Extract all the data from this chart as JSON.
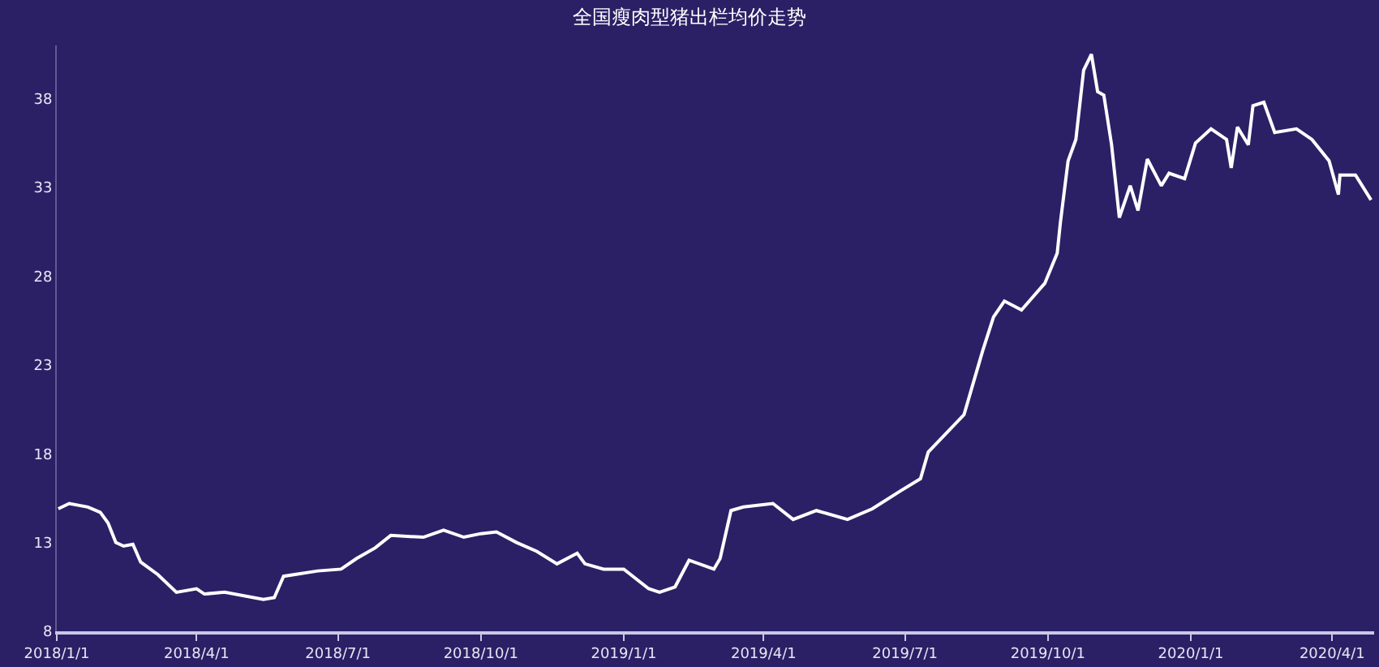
{
  "chart_data": {
    "type": "line",
    "title": "全国瘦肉型猪出栏均价走势",
    "x": [
      "2018-01-02",
      "2018-01-09",
      "2018-01-21",
      "2018-01-29",
      "2018-02-03",
      "2018-02-08",
      "2018-02-13",
      "2018-02-19",
      "2018-02-24",
      "2018-03-07",
      "2018-03-19",
      "2018-04-01",
      "2018-04-06",
      "2018-04-19",
      "2018-05-14",
      "2018-05-21",
      "2018-05-27",
      "2018-06-18",
      "2018-07-03",
      "2018-07-13",
      "2018-07-25",
      "2018-08-04",
      "2018-08-25",
      "2018-09-07",
      "2018-09-20",
      "2018-10-01",
      "2018-10-11",
      "2018-10-24",
      "2018-11-06",
      "2018-11-19",
      "2018-12-02",
      "2018-12-07",
      "2018-12-19",
      "2019-01-01",
      "2019-01-17",
      "2019-01-24",
      "2019-02-03",
      "2019-02-12",
      "2019-02-28",
      "2019-03-04",
      "2019-03-11",
      "2019-03-19",
      "2019-04-07",
      "2019-04-20",
      "2019-05-05",
      "2019-05-25",
      "2019-06-10",
      "2019-06-28",
      "2019-07-11",
      "2019-07-16",
      "2019-08-08",
      "2019-08-15",
      "2019-08-20",
      "2019-08-27",
      "2019-09-03",
      "2019-09-14",
      "2019-09-29",
      "2019-10-07",
      "2019-10-09",
      "2019-10-14",
      "2019-10-19",
      "2019-10-24",
      "2019-10-29",
      "2019-11-02",
      "2019-11-06",
      "2019-11-11",
      "2019-11-16",
      "2019-11-23",
      "2019-11-28",
      "2019-12-04",
      "2019-12-13",
      "2019-12-18",
      "2019-12-28",
      "2020-01-04",
      "2020-01-14",
      "2020-01-24",
      "2020-01-27",
      "2020-01-31",
      "2020-02-07",
      "2020-02-10",
      "2020-02-17",
      "2020-02-24",
      "2020-03-09",
      "2020-03-19",
      "2020-03-30",
      "2020-04-05",
      "2020-04-06",
      "2020-04-16",
      "2020-04-26"
    ],
    "series": [
      {
        "color": "#ffffff",
        "values": [
          14.9,
          15.2,
          15.0,
          14.7,
          14.1,
          13.0,
          12.8,
          12.9,
          11.9,
          11.2,
          10.2,
          10.4,
          10.1,
          10.2,
          9.8,
          9.9,
          11.1,
          11.4,
          11.5,
          12.1,
          12.7,
          13.4,
          13.3,
          13.7,
          13.3,
          13.5,
          13.6,
          13.0,
          12.5,
          11.8,
          12.4,
          11.8,
          11.5,
          11.5,
          10.4,
          10.2,
          10.5,
          12.0,
          11.5,
          12.1,
          14.8,
          15.0,
          15.2,
          14.3,
          14.8,
          14.3,
          14.9,
          15.9,
          16.6,
          18.1,
          20.2,
          22.3,
          23.8,
          25.7,
          26.6,
          26.1,
          27.6,
          29.3,
          31.0,
          34.5,
          35.7,
          39.6,
          40.5,
          38.4,
          38.2,
          35.4,
          31.3,
          33.1,
          31.7,
          34.6,
          33.1,
          33.8,
          33.5,
          35.5,
          36.3,
          35.7,
          34.1,
          36.4,
          35.4,
          37.6,
          37.8,
          36.1,
          36.3,
          35.7,
          34.5,
          32.6,
          33.7,
          33.7,
          32.3
        ]
      }
    ],
    "xlim": [
      "2018-01-01",
      "2020-04-28"
    ],
    "xticks": [
      {
        "value": "2018-01-01",
        "label": "2018/1/1"
      },
      {
        "value": "2018-04-01",
        "label": "2018/4/1"
      },
      {
        "value": "2018-07-01",
        "label": "2018/7/1"
      },
      {
        "value": "2018-10-01",
        "label": "2018/10/1"
      },
      {
        "value": "2019-01-01",
        "label": "2019/1/1"
      },
      {
        "value": "2019-04-01",
        "label": "2019/4/1"
      },
      {
        "value": "2019-07-01",
        "label": "2019/7/1"
      },
      {
        "value": "2019-10-01",
        "label": "2019/10/1"
      },
      {
        "value": "2020-01-01",
        "label": "2020/1/1"
      },
      {
        "value": "2020-04-01",
        "label": "2020/4/1"
      }
    ],
    "ylim": [
      8,
      41
    ],
    "yticks": [
      8,
      13,
      18,
      23,
      28,
      33,
      38
    ],
    "grid": false,
    "marker": "none",
    "line_style": "solid"
  }
}
